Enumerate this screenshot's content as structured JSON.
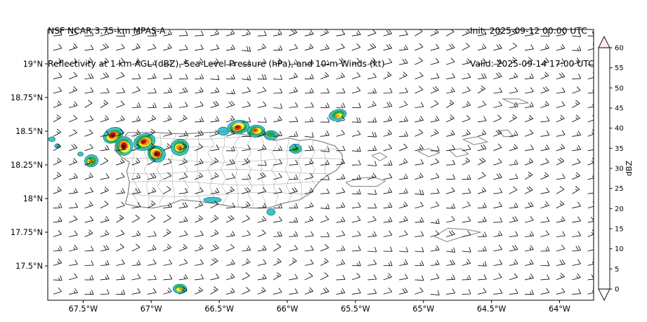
{
  "header": {
    "model_line": "NSF NCAR 3.75-km MPAS-A",
    "fields_line": "Reflectivity at 1 km AGL (dBZ), Sea-Level Pressure (hPa), and 10-m Winds (kt)",
    "init_label": "Init: 2025-09-12 00:00 UTC",
    "valid_label": "Valid: 2025-09-14 17:00 UTC"
  },
  "chart_data": {
    "type": "heatmap",
    "title": "NSF NCAR 3.75-km MPAS-A",
    "subtitle": "Reflectivity at 1 km AGL (dBZ), Sea-Level Pressure (hPa), and 10-m Winds (kt)",
    "init_time": "2025-09-12 00:00 UTC",
    "valid_time": "2025-09-14 17:00 UTC",
    "axes": {
      "lon_range": [
        -67.76,
        -63.75
      ],
      "lat_range": [
        17.245,
        19.255
      ],
      "lon_ticks": [
        {
          "v": -67.5,
          "label": "67.5°W"
        },
        {
          "v": -67.0,
          "label": "67°W"
        },
        {
          "v": -66.5,
          "label": "66.5°W"
        },
        {
          "v": -66.0,
          "label": "66°W"
        },
        {
          "v": -65.5,
          "label": "65.5°W"
        },
        {
          "v": -65.0,
          "label": "65°W"
        },
        {
          "v": -64.5,
          "label": "64.5°W"
        },
        {
          "v": -64.0,
          "label": "64°W"
        }
      ],
      "lat_ticks": [
        {
          "v": 19.0,
          "label": "19°N"
        },
        {
          "v": 18.75,
          "label": "18.75°N"
        },
        {
          "v": 18.5,
          "label": "18.5°N"
        },
        {
          "v": 18.25,
          "label": "18.25°N"
        },
        {
          "v": 18.0,
          "label": "18°N"
        },
        {
          "v": 17.75,
          "label": "17.75°N"
        },
        {
          "v": 17.5,
          "label": "17.5°N"
        }
      ]
    },
    "colorbar": {
      "label": "dBZ",
      "ticks": [
        0,
        5,
        10,
        15,
        20,
        25,
        30,
        35,
        40,
        45,
        50,
        55,
        60
      ],
      "segment_colors": [
        "#ffffff",
        "#12898c",
        "#40c1ce",
        "#a9e4e3",
        "#2ba63c",
        "#f8f32b",
        "#e4c21f",
        "#f69a1f",
        "#e2331f",
        "#941710",
        "#e23be2",
        "#f3c3ee"
      ],
      "under_color": "#ffffff",
      "over_color": "#fbeaf6"
    },
    "wind_barbs": {
      "mean_direction_from_deg": 78,
      "typical_speed_kt": 12,
      "grid_spacing_deg": 0.11
    },
    "storm_cells": [
      {
        "lon": -67.73,
        "lat": 18.44,
        "max_dbz": 10,
        "w_deg": 0.05,
        "h_deg": 0.035,
        "rot_deg": 0
      },
      {
        "lon": -67.69,
        "lat": 18.39,
        "max_dbz": 10,
        "w_deg": 0.04,
        "h_deg": 0.03,
        "rot_deg": 0
      },
      {
        "lon": -67.52,
        "lat": 18.33,
        "max_dbz": 10,
        "w_deg": 0.04,
        "h_deg": 0.03,
        "rot_deg": 0
      },
      {
        "lon": -67.44,
        "lat": 18.28,
        "max_dbz": 35,
        "w_deg": 0.1,
        "h_deg": 0.09,
        "rot_deg": -15
      },
      {
        "lon": -67.28,
        "lat": 18.47,
        "max_dbz": 50,
        "w_deg": 0.15,
        "h_deg": 0.11,
        "rot_deg": -25
      },
      {
        "lon": -67.2,
        "lat": 18.39,
        "max_dbz": 50,
        "w_deg": 0.13,
        "h_deg": 0.14,
        "rot_deg": 15
      },
      {
        "lon": -67.05,
        "lat": 18.42,
        "max_dbz": 45,
        "w_deg": 0.16,
        "h_deg": 0.12,
        "rot_deg": -20
      },
      {
        "lon": -66.96,
        "lat": 18.33,
        "max_dbz": 50,
        "w_deg": 0.13,
        "h_deg": 0.12,
        "rot_deg": 20
      },
      {
        "lon": -66.79,
        "lat": 18.38,
        "max_dbz": 40,
        "w_deg": 0.13,
        "h_deg": 0.12,
        "rot_deg": -10
      },
      {
        "lon": -66.47,
        "lat": 18.5,
        "max_dbz": 15,
        "w_deg": 0.08,
        "h_deg": 0.06,
        "rot_deg": 0
      },
      {
        "lon": -66.36,
        "lat": 18.53,
        "max_dbz": 45,
        "w_deg": 0.16,
        "h_deg": 0.1,
        "rot_deg": -8
      },
      {
        "lon": -66.23,
        "lat": 18.5,
        "max_dbz": 40,
        "w_deg": 0.13,
        "h_deg": 0.09,
        "rot_deg": -5
      },
      {
        "lon": -66.12,
        "lat": 18.47,
        "max_dbz": 25,
        "w_deg": 0.1,
        "h_deg": 0.07,
        "rot_deg": 0
      },
      {
        "lon": -65.63,
        "lat": 18.62,
        "max_dbz": 35,
        "w_deg": 0.13,
        "h_deg": 0.08,
        "rot_deg": -15
      },
      {
        "lon": -65.94,
        "lat": 18.37,
        "max_dbz": 25,
        "w_deg": 0.09,
        "h_deg": 0.07,
        "rot_deg": 0
      },
      {
        "lon": -66.55,
        "lat": 17.99,
        "max_dbz": 15,
        "w_deg": 0.13,
        "h_deg": 0.04,
        "rot_deg": 0
      },
      {
        "lon": -66.12,
        "lat": 17.9,
        "max_dbz": 15,
        "w_deg": 0.06,
        "h_deg": 0.05,
        "rot_deg": 0
      },
      {
        "lon": -66.79,
        "lat": 17.33,
        "max_dbz": 35,
        "w_deg": 0.1,
        "h_deg": 0.07,
        "rot_deg": 0
      }
    ],
    "geography": {
      "coast_color": "#8a8a8a",
      "boundary_color": "#b0b0b0",
      "islands": {
        "puerto-rico": [
          [
            -67.17,
            18.49
          ],
          [
            -66.98,
            18.49
          ],
          [
            -66.77,
            18.48
          ],
          [
            -66.58,
            18.49
          ],
          [
            -66.44,
            18.5
          ],
          [
            -66.3,
            18.47
          ],
          [
            -66.18,
            18.47
          ],
          [
            -66.1,
            18.43
          ],
          [
            -65.99,
            18.45
          ],
          [
            -65.91,
            18.43
          ],
          [
            -65.83,
            18.44
          ],
          [
            -65.74,
            18.42
          ],
          [
            -65.65,
            18.39
          ],
          [
            -65.6,
            18.33
          ],
          [
            -65.59,
            18.27
          ],
          [
            -65.64,
            18.21
          ],
          [
            -65.71,
            18.17
          ],
          [
            -65.77,
            18.12
          ],
          [
            -65.83,
            18.04
          ],
          [
            -65.91,
            17.99
          ],
          [
            -66.01,
            17.97
          ],
          [
            -66.14,
            17.93
          ],
          [
            -66.26,
            17.93
          ],
          [
            -66.4,
            17.94
          ],
          [
            -66.52,
            17.96
          ],
          [
            -66.66,
            17.98
          ],
          [
            -66.78,
            17.99
          ],
          [
            -66.88,
            17.95
          ],
          [
            -66.99,
            17.93
          ],
          [
            -67.1,
            17.94
          ],
          [
            -67.19,
            17.96
          ],
          [
            -67.17,
            18.04
          ],
          [
            -67.16,
            18.12
          ],
          [
            -67.18,
            18.2
          ],
          [
            -67.16,
            18.27
          ],
          [
            -67.22,
            18.31
          ],
          [
            -67.27,
            18.36
          ],
          [
            -67.22,
            18.43
          ]
        ],
        "vieques": [
          [
            -65.57,
            18.12
          ],
          [
            -65.47,
            18.15
          ],
          [
            -65.37,
            18.16
          ],
          [
            -65.28,
            18.13
          ],
          [
            -65.34,
            18.09
          ],
          [
            -65.45,
            18.09
          ],
          [
            -65.53,
            18.09
          ]
        ],
        "culebra": [
          [
            -65.38,
            18.32
          ],
          [
            -65.32,
            18.34
          ],
          [
            -65.27,
            18.31
          ],
          [
            -65.32,
            18.28
          ]
        ],
        "st-thomas": [
          [
            -65.04,
            18.35
          ],
          [
            -64.96,
            18.37
          ],
          [
            -64.88,
            18.34
          ],
          [
            -64.96,
            18.31
          ]
        ],
        "st-john": [
          [
            -64.81,
            18.36
          ],
          [
            -64.72,
            18.37
          ],
          [
            -64.67,
            18.33
          ],
          [
            -64.76,
            18.31
          ]
        ],
        "tortola": [
          [
            -64.71,
            18.44
          ],
          [
            -64.6,
            18.46
          ],
          [
            -64.53,
            18.42
          ],
          [
            -64.63,
            18.4
          ]
        ],
        "virgin-gorda": [
          [
            -64.45,
            18.5
          ],
          [
            -64.38,
            18.51
          ],
          [
            -64.34,
            18.46
          ],
          [
            -64.41,
            18.46
          ]
        ],
        "anegada": [
          [
            -64.42,
            18.74
          ],
          [
            -64.3,
            18.74
          ],
          [
            -64.23,
            18.71
          ],
          [
            -64.33,
            18.7
          ]
        ],
        "st-croix": [
          [
            -64.92,
            17.72
          ],
          [
            -64.82,
            17.78
          ],
          [
            -64.68,
            17.77
          ],
          [
            -64.58,
            17.75
          ],
          [
            -64.7,
            17.72
          ],
          [
            -64.83,
            17.68
          ]
        ]
      }
    }
  }
}
